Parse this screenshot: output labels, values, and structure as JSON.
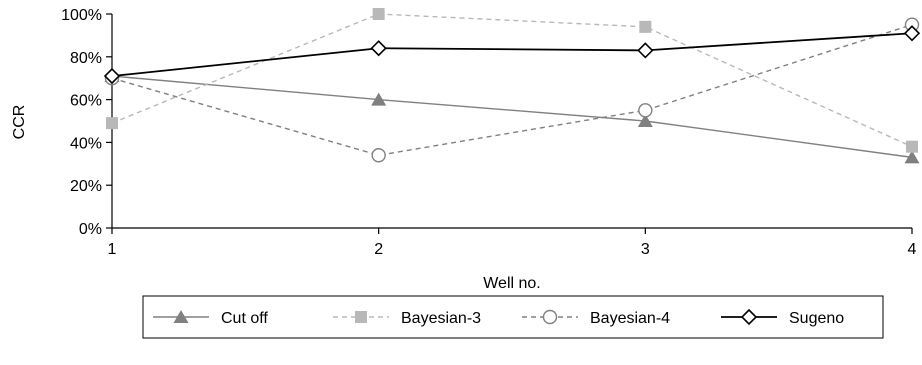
{
  "chart_data": {
    "type": "line",
    "title": "",
    "xlabel": "Well no.",
    "ylabel": "CCR",
    "x": [
      1,
      2,
      3,
      4
    ],
    "x_ticks": [
      "1",
      "2",
      "3",
      "4"
    ],
    "ylim": [
      0,
      100
    ],
    "y_ticks": [
      "0%",
      "20%",
      "40%",
      "60%",
      "80%",
      "100%"
    ],
    "y_tick_values": [
      0,
      20,
      40,
      60,
      80,
      100
    ],
    "grid": false,
    "legend_position": "bottom",
    "series": [
      {
        "name": "Cut off",
        "values": [
          71,
          60,
          50,
          33
        ],
        "color": "#808080",
        "dash": "solid",
        "marker": "triangle"
      },
      {
        "name": "Bayesian-3",
        "values": [
          49,
          100,
          94,
          38
        ],
        "color": "#b8b8b8",
        "dash": "dashed",
        "marker": "square"
      },
      {
        "name": "Bayesian-4",
        "values": [
          70,
          34,
          55,
          95
        ],
        "color": "#808080",
        "dash": "dashed",
        "marker": "circle"
      },
      {
        "name": "Sugeno",
        "values": [
          71,
          84,
          83,
          91
        ],
        "color": "#000000",
        "dash": "solid",
        "marker": "diamond"
      }
    ]
  }
}
